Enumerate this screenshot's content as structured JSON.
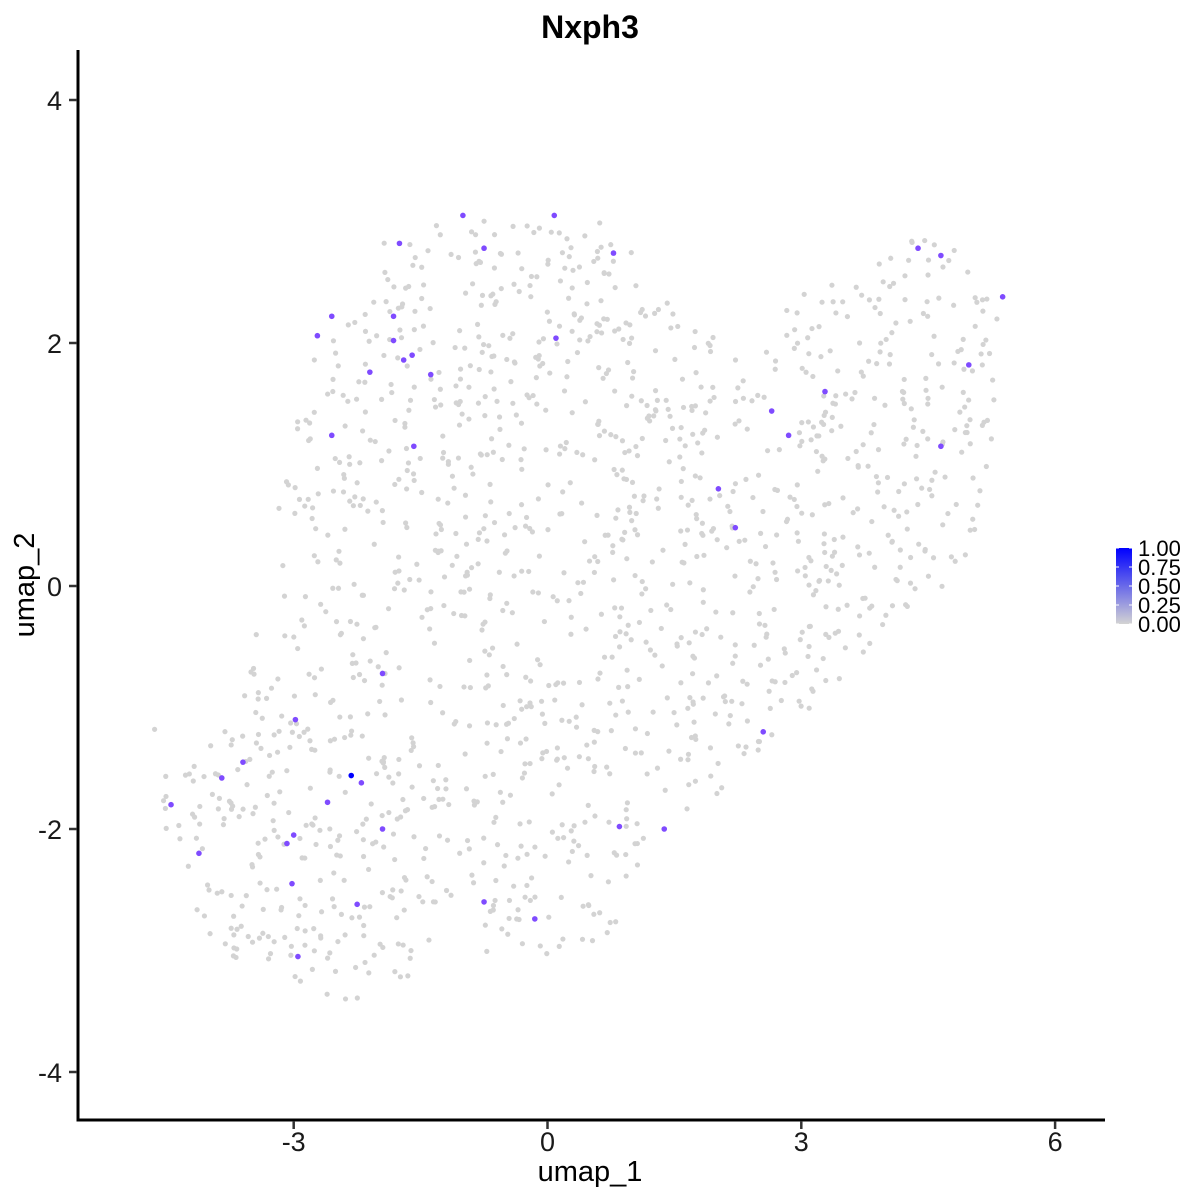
{
  "chart_data": {
    "type": "scatter",
    "title": "Nxph3",
    "xlabel": "umap_1",
    "ylabel": "umap_2",
    "xlim": [
      -5.5,
      6.6
    ],
    "ylim": [
      -4.3,
      4.4
    ],
    "x_ticks": [
      -3,
      0,
      3,
      6
    ],
    "x_tick_labels": [
      "-3",
      "0",
      "3",
      "6"
    ],
    "y_ticks": [
      -4,
      -2,
      0,
      2,
      4
    ],
    "y_tick_labels": [
      "-4",
      "-2",
      "0",
      "2",
      "4"
    ],
    "grid": false,
    "legend_position": "right",
    "colors": {
      "low": "#d3d3d3",
      "high": "#0000ff",
      "expressed": "#7f4bff"
    },
    "legend": {
      "type": "gradient",
      "labels": [
        "1.00",
        "0.75",
        "0.50",
        "0.25",
        "0.00"
      ],
      "values": [
        1.0,
        0.75,
        0.5,
        0.25,
        0.0
      ]
    },
    "background_points_note": "about 1500 cells with expression 0.00, spread over the region bounded by the outline",
    "background_outline": [
      [
        -4.8,
        -1.3
      ],
      [
        -4.7,
        -1.1
      ],
      [
        -4.2,
        -1.4
      ],
      [
        -3.6,
        -1.0
      ],
      [
        -3.5,
        -0.5
      ],
      [
        -3.4,
        -0.1
      ],
      [
        -3.2,
        0.2
      ],
      [
        -3.2,
        0.8
      ],
      [
        -3.0,
        1.0
      ],
      [
        -2.9,
        1.8
      ],
      [
        -2.7,
        2.0
      ],
      [
        -2.5,
        2.2
      ],
      [
        -2.3,
        2.6
      ],
      [
        -2.0,
        2.9
      ],
      [
        -1.5,
        3.0
      ],
      [
        -1.0,
        3.05
      ],
      [
        -0.5,
        3.0
      ],
      [
        0.0,
        3.05
      ],
      [
        0.2,
        3.15
      ],
      [
        0.6,
        3.0
      ],
      [
        1.0,
        2.8
      ],
      [
        1.3,
        2.5
      ],
      [
        1.8,
        2.1
      ],
      [
        2.2,
        2.0
      ],
      [
        2.6,
        2.1
      ],
      [
        2.9,
        2.4
      ],
      [
        3.5,
        2.5
      ],
      [
        4.0,
        2.7
      ],
      [
        4.4,
        3.05
      ],
      [
        4.7,
        2.9
      ],
      [
        5.0,
        2.6
      ],
      [
        5.3,
        2.4
      ],
      [
        5.4,
        2.0
      ],
      [
        5.3,
        1.4
      ],
      [
        5.2,
        0.9
      ],
      [
        5.0,
        0.3
      ],
      [
        4.5,
        -0.2
      ],
      [
        4.0,
        -0.4
      ],
      [
        3.6,
        -0.7
      ],
      [
        3.3,
        -1.0
      ],
      [
        2.8,
        -1.2
      ],
      [
        2.5,
        -1.4
      ],
      [
        2.0,
        -1.75
      ],
      [
        1.5,
        -1.9
      ],
      [
        1.1,
        -2.2
      ],
      [
        1.0,
        -2.6
      ],
      [
        0.7,
        -2.9
      ],
      [
        0.3,
        -3.0
      ],
      [
        0.0,
        -3.1
      ],
      [
        -0.6,
        -3.0
      ],
      [
        -1.0,
        -3.05
      ],
      [
        -1.4,
        -3.2
      ],
      [
        -1.6,
        -3.3
      ],
      [
        -2.1,
        -3.3
      ],
      [
        -2.3,
        -3.5
      ],
      [
        -2.6,
        -3.4
      ],
      [
        -3.2,
        -3.2
      ],
      [
        -3.7,
        -3.1
      ],
      [
        -4.1,
        -2.8
      ],
      [
        -4.4,
        -2.3
      ],
      [
        -4.6,
        -1.8
      ],
      [
        -4.8,
        -1.5
      ]
    ],
    "expressed_points": [
      [
        -1.0,
        3.05
      ],
      [
        0.08,
        3.05
      ],
      [
        -1.75,
        2.82
      ],
      [
        -0.75,
        2.78
      ],
      [
        0.78,
        2.74
      ],
      [
        4.38,
        2.78
      ],
      [
        4.65,
        2.72
      ],
      [
        5.38,
        2.38
      ],
      [
        -2.55,
        2.22
      ],
      [
        -1.82,
        2.22
      ],
      [
        -2.72,
        2.06
      ],
      [
        -1.82,
        2.02
      ],
      [
        0.1,
        2.04
      ],
      [
        -1.6,
        1.9
      ],
      [
        -1.7,
        1.86
      ],
      [
        -2.1,
        1.76
      ],
      [
        -1.38,
        1.74
      ],
      [
        4.98,
        1.82
      ],
      [
        3.28,
        1.6
      ],
      [
        2.65,
        1.44
      ],
      [
        -2.55,
        1.24
      ],
      [
        2.85,
        1.24
      ],
      [
        -1.58,
        1.15
      ],
      [
        4.65,
        1.15
      ],
      [
        2.02,
        0.8
      ],
      [
        2.22,
        0.48
      ],
      [
        -1.95,
        -0.72
      ],
      [
        -2.98,
        -1.1
      ],
      [
        2.55,
        -1.2
      ],
      [
        -3.6,
        -1.45
      ],
      [
        -3.85,
        -1.58
      ],
      [
        -2.2,
        -1.62
      ],
      [
        -4.45,
        -1.8
      ],
      [
        -2.6,
        -1.78
      ],
      [
        0.85,
        -1.98
      ],
      [
        -1.95,
        -2.0
      ],
      [
        1.38,
        -2.0
      ],
      [
        -3.0,
        -2.05
      ],
      [
        -3.08,
        -2.12
      ],
      [
        -4.12,
        -2.2
      ],
      [
        -3.02,
        -2.45
      ],
      [
        -2.25,
        -2.62
      ],
      [
        -0.75,
        -2.6
      ],
      [
        -0.15,
        -2.74
      ],
      [
        -2.95,
        -3.05
      ]
    ],
    "max_point": {
      "x": -2.32,
      "y": -1.56,
      "value": 1.0
    }
  }
}
